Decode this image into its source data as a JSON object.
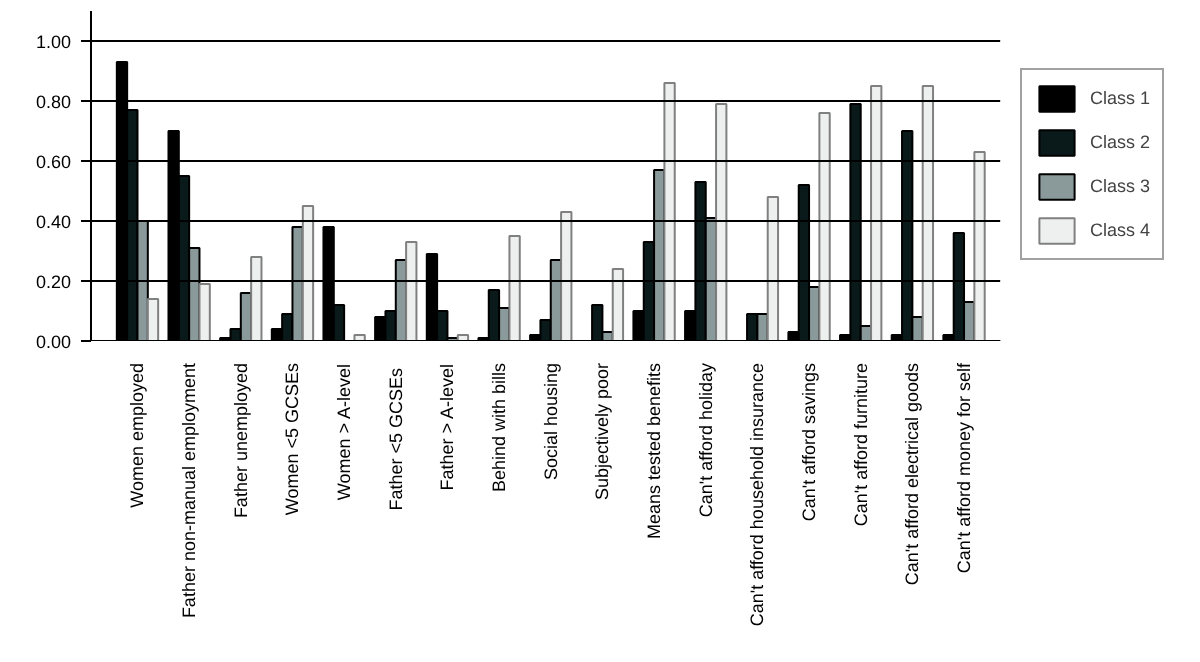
{
  "chart_data": {
    "type": "bar",
    "categories": [
      "Women employed",
      "Father non-manual employment",
      "Father unemployed",
      "Women <5 GCSEs",
      "Women > A-level",
      "Father  <5 GCSEs",
      "Father > A-level",
      "Behind with bills",
      "Social housing",
      "Subjectively poor",
      "Means tested benefits",
      "Can't afford holiday",
      "Can't afford household insurance",
      "Can't afford savings",
      "Can't afford furniture",
      "Can't afford electrical goods",
      "Can't afford money for self"
    ],
    "series": [
      {
        "name": "Class 1",
        "color": "#000000",
        "values": [
          0.93,
          0.7,
          0.01,
          0.04,
          0.38,
          0.08,
          0.29,
          0.01,
          0.02,
          0.0,
          0.1,
          0.1,
          0.0,
          0.03,
          0.02,
          0.02,
          0.02
        ]
      },
      {
        "name": "Class 2",
        "color": "#0a1a1a",
        "values": [
          0.77,
          0.55,
          0.04,
          0.09,
          0.12,
          0.1,
          0.1,
          0.17,
          0.07,
          0.12,
          0.33,
          0.53,
          0.09,
          0.52,
          0.79,
          0.7,
          0.36
        ]
      },
      {
        "name": "Class 3",
        "color": "#8a9a9a",
        "values": [
          0.4,
          0.31,
          0.16,
          0.38,
          0.0,
          0.27,
          0.01,
          0.11,
          0.27,
          0.03,
          0.57,
          0.41,
          0.09,
          0.18,
          0.05,
          0.08,
          0.13
        ]
      },
      {
        "name": "Class 4",
        "color": "#eef0f0",
        "values": [
          0.14,
          0.19,
          0.28,
          0.45,
          0.02,
          0.33,
          0.02,
          0.35,
          0.43,
          0.24,
          0.86,
          0.79,
          0.48,
          0.76,
          0.85,
          0.85,
          0.63
        ]
      }
    ],
    "ylim": [
      0,
      1.1
    ],
    "yticks": [
      {
        "value": 0,
        "label": "0.00"
      },
      {
        "value": 0.2,
        "label": "0.20"
      },
      {
        "value": 0.4,
        "label": "0.40"
      },
      {
        "value": 0.6,
        "label": "0.60"
      },
      {
        "value": 0.8,
        "label": "0.80"
      },
      {
        "value": 1.0,
        "label": "1.00"
      }
    ],
    "grid": "y",
    "legend": "right"
  }
}
